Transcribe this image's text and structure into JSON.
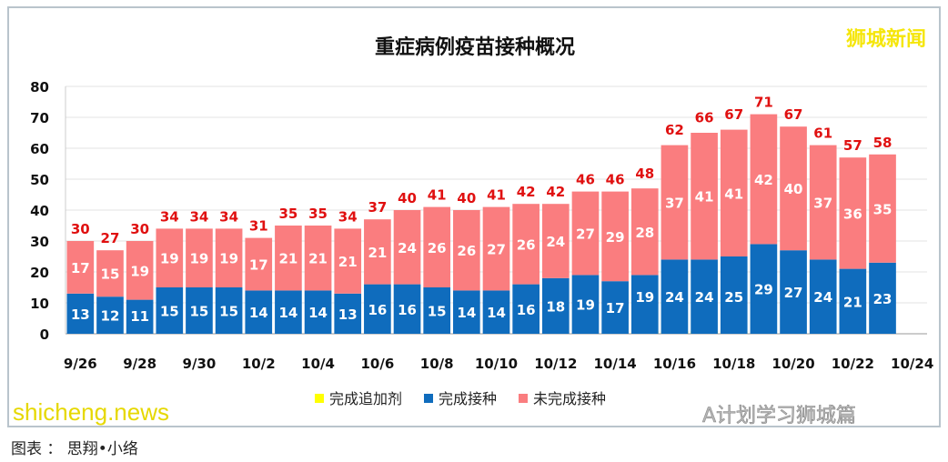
{
  "chart_data": {
    "type": "bar",
    "stacked": true,
    "title": "重症病例疫苗接种概况",
    "categories": [
      "9/26",
      "9/27",
      "9/28",
      "9/29",
      "9/30",
      "10/1",
      "10/2",
      "10/3",
      "10/4",
      "10/5",
      "10/6",
      "10/7",
      "10/8",
      "10/9",
      "10/10",
      "10/11",
      "10/12",
      "10/13",
      "10/14",
      "10/15",
      "10/16",
      "10/17",
      "10/18",
      "10/19",
      "10/20",
      "10/21",
      "10/22",
      "10/23"
    ],
    "x_tick_labels": [
      "9/26",
      "9/28",
      "9/30",
      "10/2",
      "10/4",
      "10/6",
      "10/8",
      "10/10",
      "10/12",
      "10/14",
      "10/16",
      "10/18",
      "10/20",
      "10/22",
      "10/24"
    ],
    "ylim": [
      0,
      80
    ],
    "y_ticks": [
      0,
      10,
      20,
      30,
      40,
      50,
      60,
      70,
      80
    ],
    "grid": true,
    "legend_position": "bottom",
    "series": [
      {
        "name": "完成追加剂",
        "color": "#ffff00",
        "label_color": "#e8e800",
        "values": [
          0,
          0,
          0,
          0,
          0,
          0,
          0,
          0,
          0,
          0,
          0,
          0,
          0,
          0,
          0,
          0,
          0,
          0,
          0,
          1,
          1,
          1,
          1,
          0,
          0,
          0,
          0,
          0
        ]
      },
      {
        "name": "完成接种",
        "color": "#0f6cbd",
        "label_color": "#ffffff",
        "values": [
          13,
          12,
          11,
          15,
          15,
          15,
          14,
          14,
          14,
          13,
          16,
          16,
          15,
          14,
          14,
          16,
          18,
          19,
          17,
          19,
          24,
          24,
          25,
          29,
          27,
          24,
          21,
          23
        ]
      },
      {
        "name": "未完成接种",
        "color": "#fa7d7f",
        "label_color": "#ffffff",
        "values": [
          17,
          15,
          19,
          19,
          19,
          19,
          17,
          21,
          21,
          21,
          21,
          24,
          26,
          26,
          27,
          26,
          24,
          27,
          29,
          28,
          37,
          41,
          41,
          42,
          40,
          37,
          36,
          35
        ]
      }
    ],
    "totals": [
      30,
      27,
      30,
      34,
      34,
      34,
      31,
      35,
      35,
      34,
      37,
      40,
      41,
      40,
      41,
      42,
      42,
      46,
      46,
      48,
      62,
      66,
      67,
      71,
      67,
      61,
      57,
      58
    ],
    "total_label_color": "#e01010"
  },
  "watermarks": {
    "top_right": "狮城新闻",
    "site": "shicheng.news",
    "account": "A计划学习狮城篇"
  },
  "footer": "图表 ： 思翔•小络"
}
